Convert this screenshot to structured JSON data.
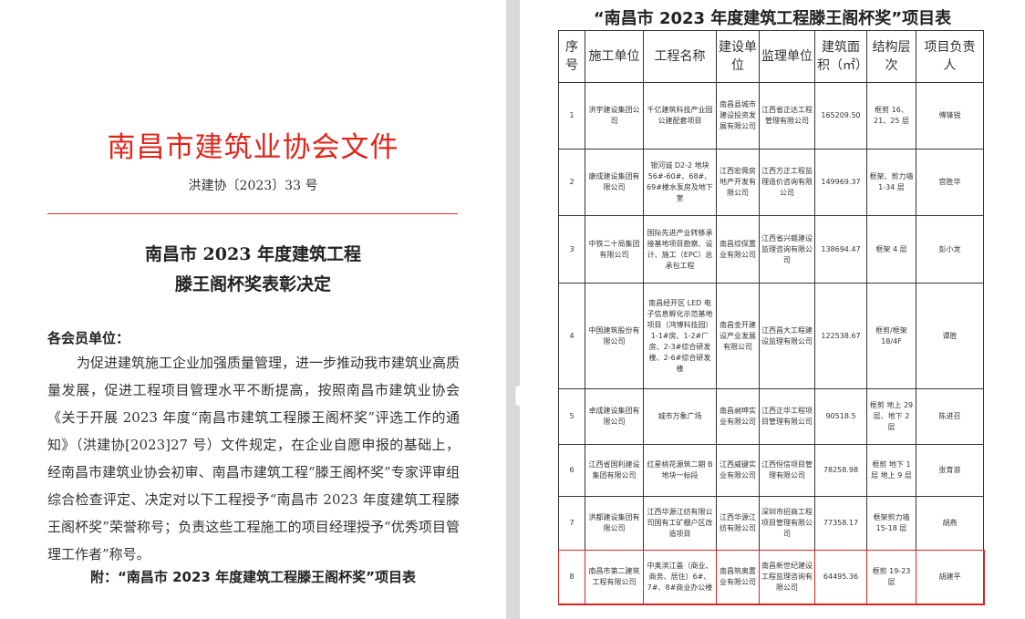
{
  "left_page": {
    "org_title": "南昌市建筑业协会文件",
    "doc_number": "洪建协〔2023〕33 号",
    "heading_line1": "南昌市 2023 年度建筑工程",
    "heading_line2": "滕王阁杯奖表彰决定",
    "salutation": "各会员单位：",
    "body": "为促进建筑施工企业加强质量管理，进一步推动我市建筑业高质量发展，促进工程项目管理水平不断提高，按照南昌市建筑业协会《关于开展 2023 年度“南昌市建筑工程滕王阁杯奖”评选工作的通知》（洪建协[2023]27 号）文件规定，在企业自愿申报的基础上，经南昌市建筑业协会初审、南昌市建筑工程“滕王阁杯奖”专家评审组综合检查评定、决定对以下工程授予“南昌市 2023 年度建筑工程滕王阁杯奖”荣誉称号；负责这些工程施工的项目经理授予“优秀项目管理工作者”称号。",
    "attachment": "附：“南昌市 2023 年度建筑工程滕王阁杯奖”项目表"
  },
  "right_page": {
    "title": "“南昌市 2023 年度建筑工程滕王阁杯奖”项目表",
    "headers": [
      "序号",
      "施工单位",
      "工程名称",
      "建设单位",
      "监理单位",
      "建筑面积（㎡）",
      "结构层次",
      "项目负责人"
    ],
    "rows": [
      [
        "1",
        "洪宇建设集团公司",
        "千亿建筑科技产业园公建配套项目",
        "南昌县城市建设投资发展有限公司",
        "江西省正达工程管理有限公司",
        "165209.50",
        "框剪 16、21、25 层",
        "傅锋锐"
      ],
      [
        "2",
        "康成建设集团有限公司",
        "银河诚 D2-2 地块 56#-60#、68#、69#楼水泵房及地下室",
        "江西宏舜房地产开发有限公司",
        "江西方正工程监理造价咨询有限公司",
        "149969.37",
        "框架、剪力墙 1-34 层",
        "宫胜华"
      ],
      [
        "3",
        "中铁二十局集团有限公司",
        "国际先进产业转移承接基地项目勘察、设计、施工（EPC）总承包工程",
        "南昌综保置业有限公司",
        "江西省兴赣建设监理咨询有限公司",
        "138694.47",
        "框架 4 层",
        "彭小龙"
      ],
      [
        "4",
        "中国建筑股份有限公司",
        "南昌经开区 LED 电子信息孵化示范基地项目（鸿博科技园）1-1#房、1-2#厂房、2-3#综合研发楼、2-6#综合研发楼",
        "南昌金开建设产业发展有限公司",
        "江西昌大工程建设监理有限公司",
        "122538.67",
        "框剪/框架 18/4F",
        "谭胜"
      ],
      [
        "5",
        "卓成建设集团有限公司",
        "城市万象广场",
        "南昌昶坤实业有限公司",
        "江西正华工程项目管理有限公司",
        "90518.5",
        "框剪 地上 29 层、地下 2 层",
        "陈进召"
      ],
      [
        "6",
        "江西省国利建设集团有限公司",
        "红星桃花源筑二期 B 地块一标段",
        "江西威键实业有限公司",
        "江西恒信项目管理有限公司",
        "78258.98",
        "框剪 地下 1 层 地上 9 层",
        "张育浪"
      ],
      [
        "7",
        "洪都建设集团有限公司",
        "江西华源江纺有限公司国有工矿棚户区改造项目",
        "江西华源江纺有限公司",
        "深圳市招商工程项目管理有限公司",
        "77358.17",
        "框架剪力墙 15-18 层",
        "胡燕"
      ],
      [
        "8",
        "南昌市第二建筑工程有限公司",
        "中奥滨江荟（商业、商务、居住）6#、7#、8#商业办公楼",
        "南昌筑奥置业有限公司",
        "南昌新世纪建设工程监理咨询有限公司",
        "64495.36",
        "框剪 19-23 层",
        "胡建平"
      ]
    ]
  },
  "colors": {
    "title_red": "#e1251b",
    "highlight_border": "#dd2222"
  },
  "floating_toolbar": {
    "icon": "text-frame-icon",
    "dropdown": "chevron-down-icon"
  }
}
